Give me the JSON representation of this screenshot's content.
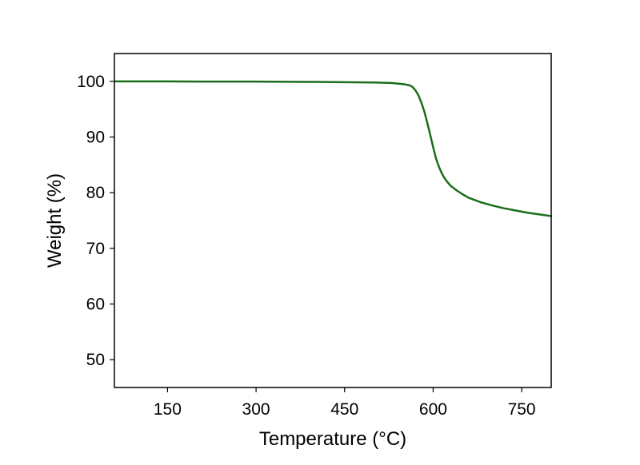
{
  "chart_data": {
    "type": "line",
    "title": "",
    "xlabel": "Temperature (°C)",
    "ylabel": "Weight (%)",
    "xlim": [
      60,
      800
    ],
    "ylim": [
      45,
      105
    ],
    "x_ticks": [
      150,
      300,
      450,
      600,
      750
    ],
    "y_ticks": [
      50,
      60,
      70,
      80,
      90,
      100
    ],
    "grid": false,
    "legend": "none",
    "series": [
      {
        "color": "#1a6e1a",
        "x": [
          60,
          150,
          230,
          300,
          400,
          450,
          500,
          530,
          550,
          560,
          565,
          570,
          575,
          580,
          585,
          590,
          595,
          600,
          605,
          610,
          615,
          620,
          625,
          630,
          640,
          650,
          660,
          670,
          680,
          700,
          720,
          740,
          760,
          780,
          800
        ],
        "y": [
          100,
          100,
          99.95,
          99.95,
          99.9,
          99.85,
          99.8,
          99.7,
          99.5,
          99.3,
          99.0,
          98.4,
          97.5,
          96.2,
          94.6,
          92.6,
          90.4,
          88.2,
          86.1,
          84.6,
          83.4,
          82.5,
          81.8,
          81.2,
          80.4,
          79.7,
          79.1,
          78.7,
          78.3,
          77.7,
          77.2,
          76.8,
          76.4,
          76.1,
          75.8
        ]
      }
    ]
  }
}
